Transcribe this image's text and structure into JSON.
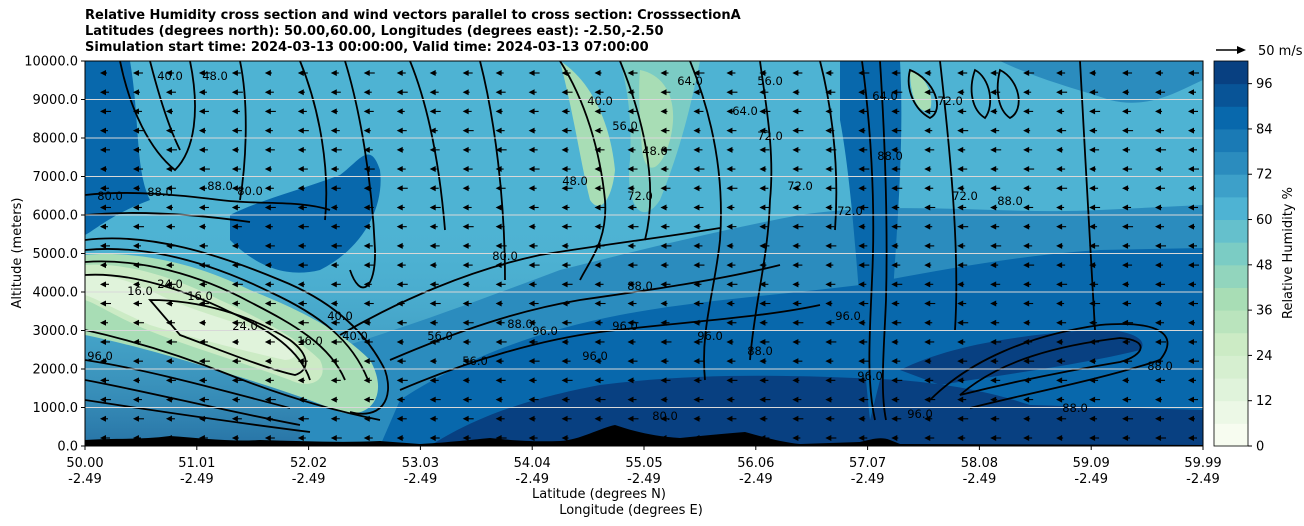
{
  "header": {
    "title_line1": "Relative Humidity cross section and wind vectors parallel to cross section: CrosssectionA",
    "title_line2": "Latitudes (degrees north): 50.00,60.00, Longitudes (degrees east): -2.50,-2.50",
    "title_line3": "Simulation start time: 2024-03-13 00:00:00, Valid time: 2024-03-13 07:00:00"
  },
  "wind_key": {
    "label": "50 m/s"
  },
  "colorbar": {
    "label": "Relative Humidity %",
    "ticks": [
      "0",
      "12",
      "24",
      "36",
      "48",
      "60",
      "72",
      "84",
      "96"
    ],
    "tick_values": [
      0,
      12,
      24,
      36,
      48,
      60,
      72,
      84,
      96
    ]
  },
  "chart_data": {
    "type": "heatmap",
    "subtype": "filled contour cross section with wind vectors",
    "ylabel": "Altitude (meters)",
    "xlabel_line1": "Latitude (degrees N)",
    "xlabel_line2": "Longitude (degrees E)",
    "ylim": [
      0,
      10000
    ],
    "y_ticks": [
      "0.0",
      "1000.0",
      "2000.0",
      "3000.0",
      "4000.0",
      "5000.0",
      "6000.0",
      "7000.0",
      "8000.0",
      "9000.0",
      "10000.0"
    ],
    "x_ticks_lat": [
      "50.00",
      "51.01",
      "52.02",
      "53.03",
      "54.04",
      "55.05",
      "56.06",
      "57.07",
      "58.08",
      "59.09",
      "59.99"
    ],
    "x_ticks_lon": [
      "-2.49",
      "-2.49",
      "-2.49",
      "-2.49",
      "-2.49",
      "-2.49",
      "-2.49",
      "-2.49",
      "-2.49",
      "-2.49",
      "-2.49"
    ],
    "grid": "horizontal",
    "colormap": "GnBu",
    "colors": [
      "#f7fcf0",
      "#e0f3db",
      "#ccebc5",
      "#a8ddb5",
      "#7bccc4",
      "#4eb3d3",
      "#2b8cbe",
      "#0868ac",
      "#084081"
    ],
    "contour_labels": [
      "16.0",
      "24.0",
      "40.0",
      "48.0",
      "56.0",
      "64.0",
      "72.0",
      "80.0",
      "88.0",
      "96.0"
    ],
    "wind_direction": "left"
  }
}
